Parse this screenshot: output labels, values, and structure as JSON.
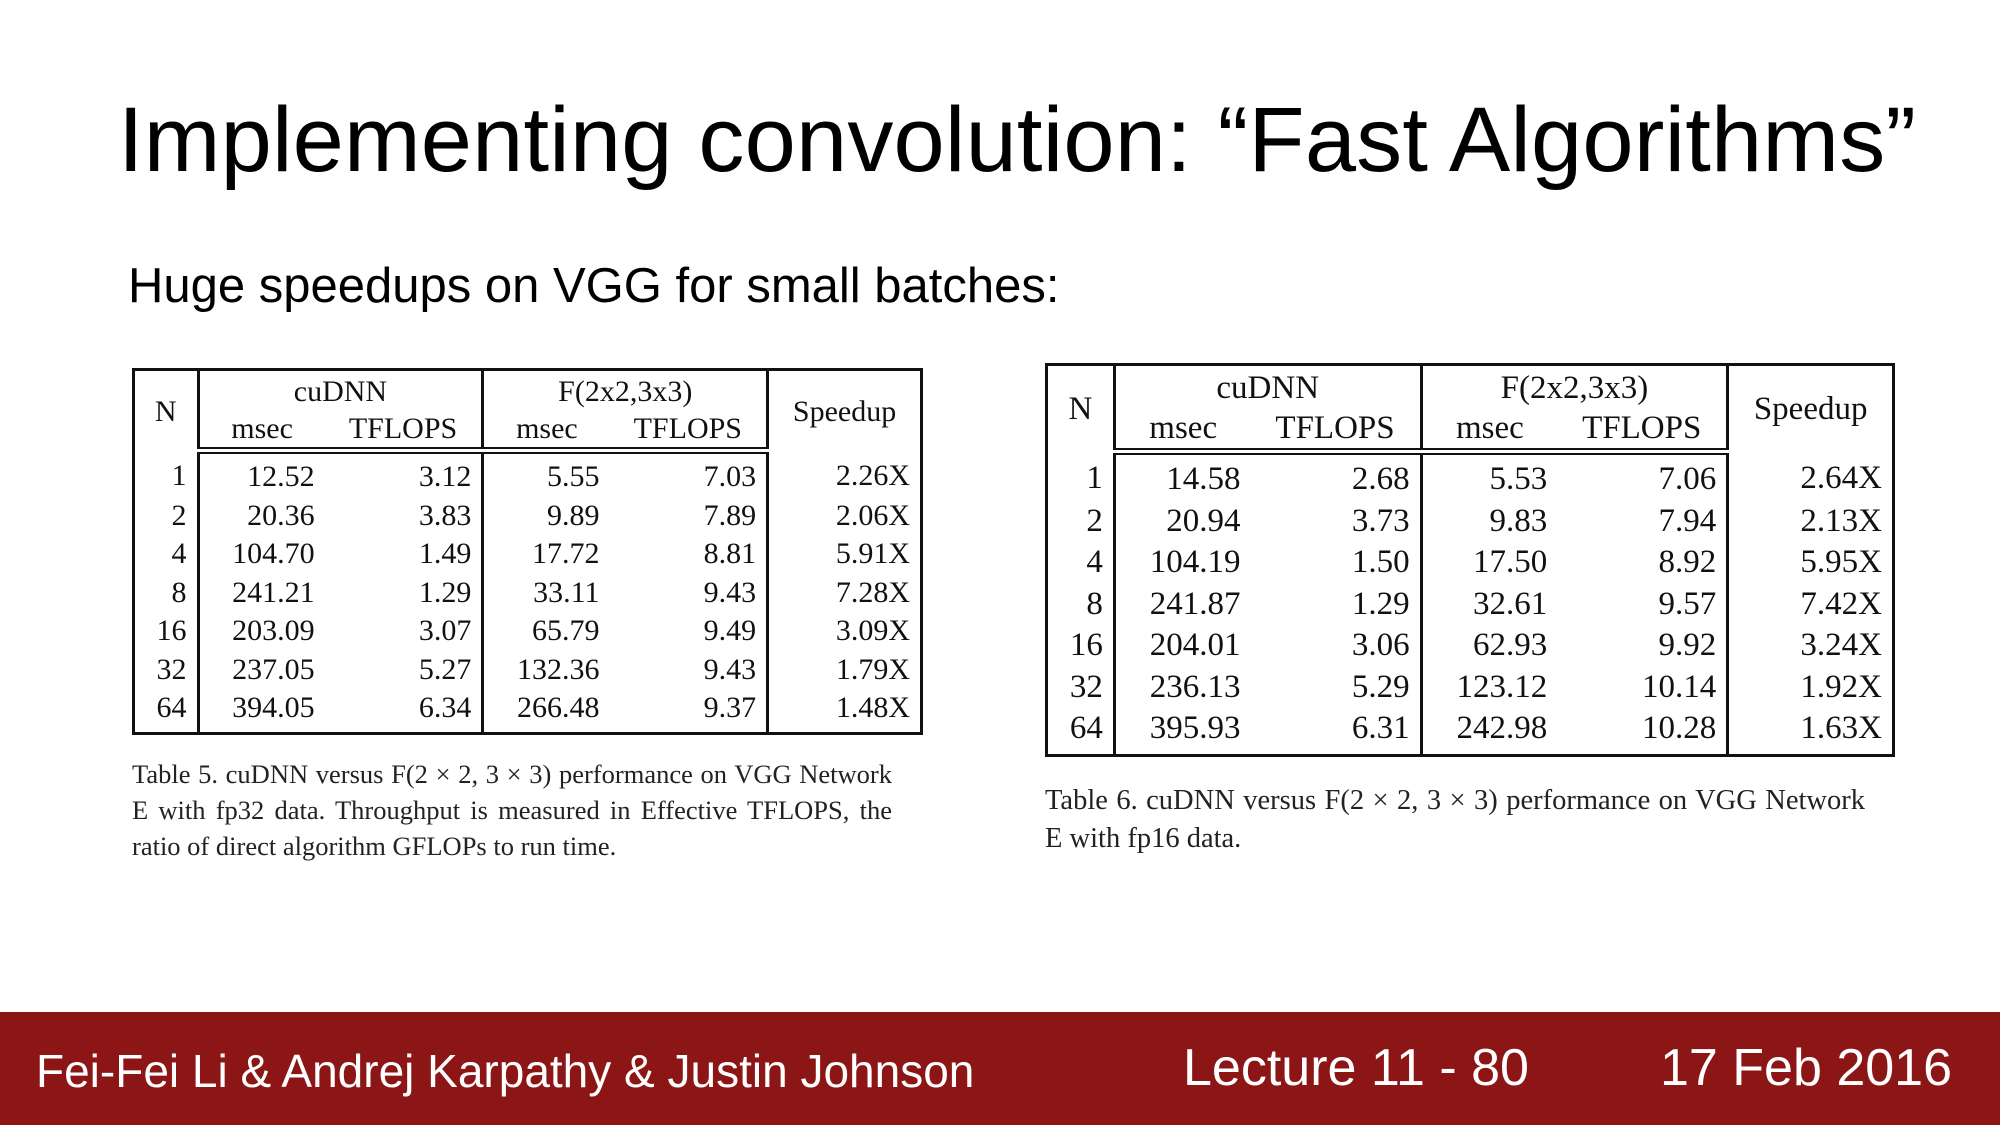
{
  "slide": {
    "title": "Implementing convolution: “Fast Algorithms”",
    "subtitle": "Huge speedups on VGG for small batches:"
  },
  "tables": [
    {
      "id": "table5",
      "headers": {
        "n": "N",
        "cudnn": "cuDNN",
        "fast": "F(2x2,3x3)",
        "msec": "msec",
        "tflops": "TFLOPS",
        "speedup": "Speedup"
      },
      "rows": [
        {
          "n": "1",
          "cudnn_msec": "12.52",
          "cudnn_tflops": "3.12",
          "f_msec": "5.55",
          "f_tflops": "7.03",
          "speedup": "2.26X"
        },
        {
          "n": "2",
          "cudnn_msec": "20.36",
          "cudnn_tflops": "3.83",
          "f_msec": "9.89",
          "f_tflops": "7.89",
          "speedup": "2.06X"
        },
        {
          "n": "4",
          "cudnn_msec": "104.70",
          "cudnn_tflops": "1.49",
          "f_msec": "17.72",
          "f_tflops": "8.81",
          "speedup": "5.91X"
        },
        {
          "n": "8",
          "cudnn_msec": "241.21",
          "cudnn_tflops": "1.29",
          "f_msec": "33.11",
          "f_tflops": "9.43",
          "speedup": "7.28X"
        },
        {
          "n": "16",
          "cudnn_msec": "203.09",
          "cudnn_tflops": "3.07",
          "f_msec": "65.79",
          "f_tflops": "9.49",
          "speedup": "3.09X"
        },
        {
          "n": "32",
          "cudnn_msec": "237.05",
          "cudnn_tflops": "5.27",
          "f_msec": "132.36",
          "f_tflops": "9.43",
          "speedup": "1.79X"
        },
        {
          "n": "64",
          "cudnn_msec": "394.05",
          "cudnn_tflops": "6.34",
          "f_msec": "266.48",
          "f_tflops": "9.37",
          "speedup": "1.48X"
        }
      ],
      "caption": "Table 5. cuDNN versus F(2 × 2, 3 × 3) performance on VGG Network E with fp32 data. Throughput is measured in Effective TFLOPS, the ratio of direct algorithm GFLOPs to run time."
    },
    {
      "id": "table6",
      "headers": {
        "n": "N",
        "cudnn": "cuDNN",
        "fast": "F(2x2,3x3)",
        "msec": "msec",
        "tflops": "TFLOPS",
        "speedup": "Speedup"
      },
      "rows": [
        {
          "n": "1",
          "cudnn_msec": "14.58",
          "cudnn_tflops": "2.68",
          "f_msec": "5.53",
          "f_tflops": "7.06",
          "speedup": "2.64X"
        },
        {
          "n": "2",
          "cudnn_msec": "20.94",
          "cudnn_tflops": "3.73",
          "f_msec": "9.83",
          "f_tflops": "7.94",
          "speedup": "2.13X"
        },
        {
          "n": "4",
          "cudnn_msec": "104.19",
          "cudnn_tflops": "1.50",
          "f_msec": "17.50",
          "f_tflops": "8.92",
          "speedup": "5.95X"
        },
        {
          "n": "8",
          "cudnn_msec": "241.87",
          "cudnn_tflops": "1.29",
          "f_msec": "32.61",
          "f_tflops": "9.57",
          "speedup": "7.42X"
        },
        {
          "n": "16",
          "cudnn_msec": "204.01",
          "cudnn_tflops": "3.06",
          "f_msec": "62.93",
          "f_tflops": "9.92",
          "speedup": "3.24X"
        },
        {
          "n": "32",
          "cudnn_msec": "236.13",
          "cudnn_tflops": "5.29",
          "f_msec": "123.12",
          "f_tflops": "10.14",
          "speedup": "1.92X"
        },
        {
          "n": "64",
          "cudnn_msec": "395.93",
          "cudnn_tflops": "6.31",
          "f_msec": "242.98",
          "f_tflops": "10.28",
          "speedup": "1.63X"
        }
      ],
      "caption": "Table 6. cuDNN versus F(2 × 2, 3 × 3) performance on VGG Network E with fp16 data."
    }
  ],
  "footer": {
    "authors": "Fei-Fei Li & Andrej Karpathy & Justin Johnson",
    "lecture": "Lecture 11 - 80",
    "date": "17 Feb 2016",
    "background": "#8c1515"
  }
}
